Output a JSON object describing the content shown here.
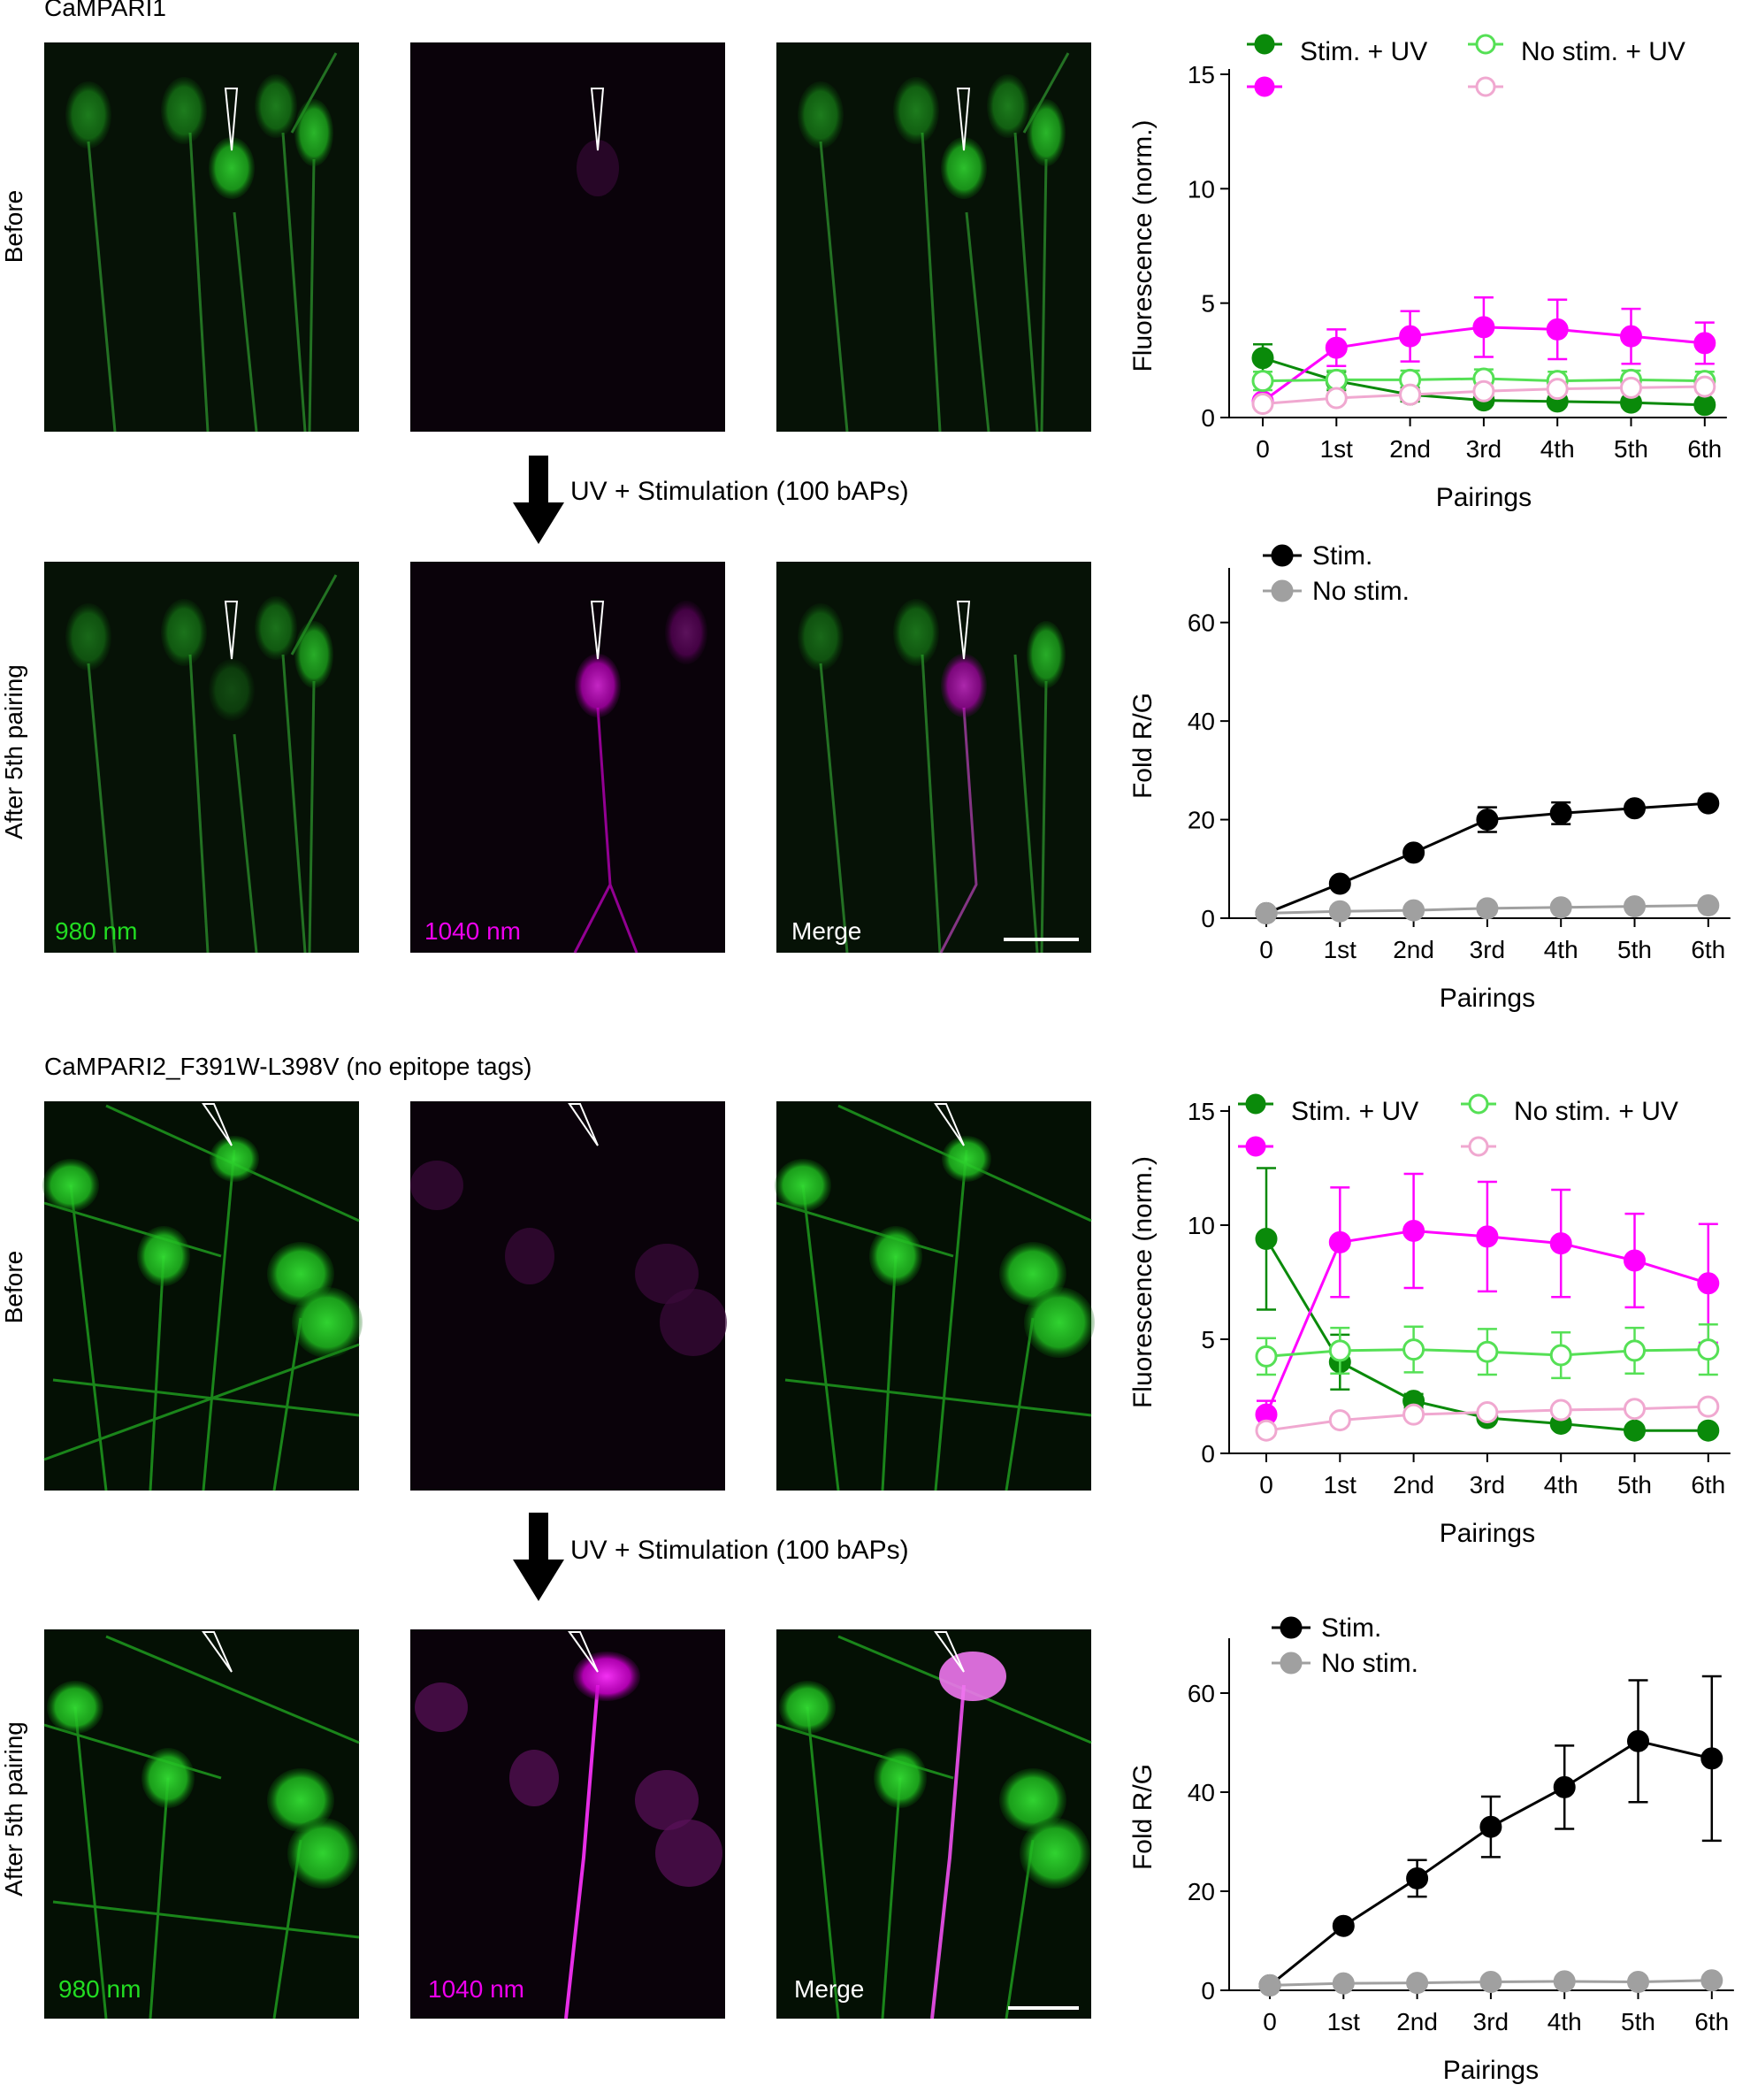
{
  "constructs": [
    {
      "title": "CaMPARI1",
      "rows": [
        {
          "label": "Before"
        },
        {
          "label": "After 5th pairing"
        }
      ],
      "step_label": "UV + Stimulation (100 bAPs)",
      "channels": [
        {
          "label": "980 nm",
          "color": "#22dd22"
        },
        {
          "label": "1040 nm",
          "color": "#ee00ee"
        },
        {
          "label": "Merge",
          "color": "#ffffff"
        }
      ]
    },
    {
      "title": "CaMPARI2_F391W-L398V (no epitope tags)",
      "rows": [
        {
          "label": "Before"
        },
        {
          "label": "After 5th pairing"
        }
      ],
      "step_label": "UV + Stimulation (100 bAPs)",
      "channels": [
        {
          "label": "980 nm",
          "color": "#22dd22"
        },
        {
          "label": "1040 nm",
          "color": "#ee00ee"
        },
        {
          "label": "Merge",
          "color": "#ffffff"
        }
      ]
    }
  ],
  "colors": {
    "green": "#0a8a0a",
    "light_green": "#55e055",
    "magenta": "#ff00ff",
    "pink": "#f0a8d0",
    "black": "#000000",
    "gray": "#a0a0a0"
  },
  "chart_data": [
    {
      "type": "line",
      "x": [
        "0",
        "1st",
        "2nd",
        "3rd",
        "4th",
        "5th",
        "6th"
      ],
      "xlabel": "Pairings",
      "ylabel": "Fluorescence (norm.)",
      "ylim": [
        0,
        15
      ],
      "yticks": [
        0,
        5,
        10,
        15
      ],
      "legend": [
        "Stim. + UV",
        "No stim. + UV"
      ],
      "series": [
        {
          "color_key": "green",
          "filled": true,
          "values": [
            2.6,
            1.6,
            1.0,
            0.75,
            0.7,
            0.65,
            0.55
          ],
          "errors": [
            0.6,
            0.4,
            0.3,
            0.2,
            0.2,
            0.2,
            0.2
          ]
        },
        {
          "color_key": "magenta",
          "filled": true,
          "values": [
            0.7,
            3.05,
            3.55,
            3.95,
            3.85,
            3.55,
            3.25
          ],
          "errors": [
            0.2,
            0.8,
            1.1,
            1.3,
            1.3,
            1.2,
            0.9
          ]
        },
        {
          "color_key": "light_green",
          "filled": false,
          "values": [
            1.6,
            1.65,
            1.65,
            1.7,
            1.6,
            1.65,
            1.6
          ],
          "errors": [
            0.4,
            0.4,
            0.4,
            0.4,
            0.4,
            0.4,
            0.4
          ]
        },
        {
          "color_key": "pink",
          "filled": false,
          "values": [
            0.6,
            0.85,
            1.0,
            1.15,
            1.25,
            1.3,
            1.35
          ],
          "errors": [
            0.15,
            0.2,
            0.2,
            0.2,
            0.2,
            0.2,
            0.2
          ]
        }
      ]
    },
    {
      "type": "line",
      "x": [
        "0",
        "1st",
        "2nd",
        "3rd",
        "4th",
        "5th",
        "6th"
      ],
      "xlabel": "Pairings",
      "ylabel": "Fold R/G",
      "ylim": [
        0,
        70
      ],
      "yticks": [
        0,
        20,
        40,
        60
      ],
      "legend": [
        "Stim.",
        "No stim."
      ],
      "series": [
        {
          "color_key": "black",
          "filled": true,
          "values": [
            1,
            7,
            13.3,
            20,
            21.3,
            22.3,
            23.3
          ],
          "errors": [
            0,
            0,
            0,
            2.5,
            2.2,
            0,
            0
          ]
        },
        {
          "color_key": "gray",
          "filled": true,
          "values": [
            1,
            1.4,
            1.6,
            2,
            2.2,
            2.4,
            2.6
          ],
          "errors": [
            0,
            0,
            0,
            0,
            0,
            0,
            0
          ]
        }
      ]
    },
    {
      "type": "line",
      "x": [
        "0",
        "1st",
        "2nd",
        "3rd",
        "4th",
        "5th",
        "6th"
      ],
      "xlabel": "Pairings",
      "ylabel": "Fluorescence (norm.)",
      "ylim": [
        0,
        15
      ],
      "yticks": [
        0,
        5,
        10,
        15
      ],
      "legend": [
        "Stim. + UV",
        "No stim. + UV"
      ],
      "series": [
        {
          "color_key": "green",
          "filled": true,
          "values": [
            9.4,
            4.0,
            2.3,
            1.55,
            1.3,
            1.0,
            1.0
          ],
          "errors": [
            3.1,
            1.2,
            0.3,
            0,
            0,
            0,
            0
          ]
        },
        {
          "color_key": "magenta",
          "filled": true,
          "values": [
            1.7,
            9.25,
            9.75,
            9.5,
            9.2,
            8.45,
            7.45
          ],
          "errors": [
            0.6,
            2.4,
            2.5,
            2.4,
            2.35,
            2.05,
            2.6
          ]
        },
        {
          "color_key": "light_green",
          "filled": false,
          "values": [
            4.25,
            4.5,
            4.55,
            4.45,
            4.3,
            4.5,
            4.55
          ],
          "errors": [
            0.8,
            1.0,
            1.0,
            1.0,
            1.0,
            1.0,
            1.1
          ]
        },
        {
          "color_key": "pink",
          "filled": false,
          "values": [
            1.0,
            1.45,
            1.7,
            1.8,
            1.9,
            1.95,
            2.05
          ],
          "errors": [
            0,
            0,
            0,
            0,
            0,
            0,
            0
          ]
        }
      ]
    },
    {
      "type": "line",
      "x": [
        "0",
        "1st",
        "2nd",
        "3rd",
        "4th",
        "5th",
        "6th"
      ],
      "xlabel": "Pairings",
      "ylabel": "Fold R/G",
      "ylim": [
        0,
        70
      ],
      "yticks": [
        0,
        20,
        40,
        60
      ],
      "legend": [
        "Stim.",
        "No stim."
      ],
      "series": [
        {
          "color_key": "black",
          "filled": true,
          "values": [
            1,
            13,
            22.6,
            33,
            41,
            50.3,
            46.8
          ],
          "errors": [
            0,
            0,
            3.7,
            6.1,
            8.4,
            12.3,
            16.6
          ]
        },
        {
          "color_key": "gray",
          "filled": true,
          "values": [
            1,
            1.4,
            1.5,
            1.7,
            1.8,
            1.7,
            2.0
          ],
          "errors": [
            0,
            0,
            0,
            0,
            0,
            0,
            0
          ]
        }
      ]
    }
  ]
}
